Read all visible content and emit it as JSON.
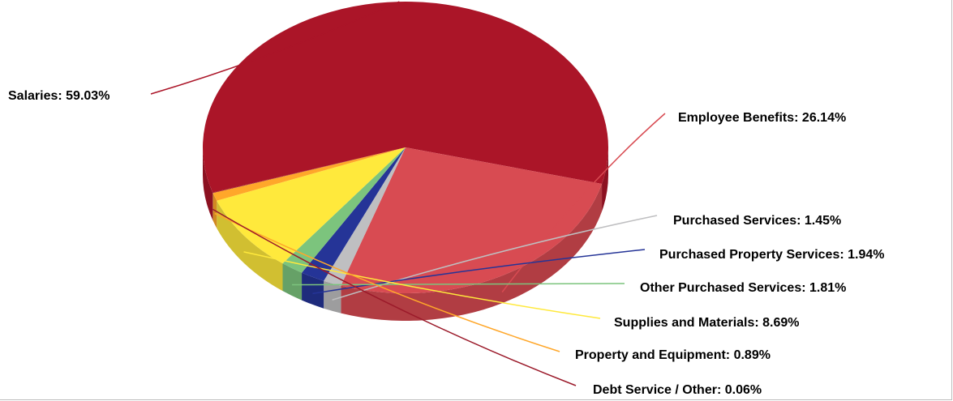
{
  "chart_data": {
    "type": "pie",
    "title": "",
    "three_d": true,
    "slices": [
      {
        "name": "Salaries",
        "value": 59.03,
        "label": "Salaries: 59.03%",
        "color": "#ab1528"
      },
      {
        "name": "Employee Benefits",
        "value": 26.14,
        "label": "Employee Benefits: 26.14%",
        "color": "#d84b52"
      },
      {
        "name": "Purchased Services",
        "value": 1.45,
        "label": "Purchased Services: 1.45%",
        "color": "#bfbfc1"
      },
      {
        "name": "Purchased Property Services",
        "value": 1.94,
        "label": "Purchased Property Services: 1.94%",
        "color": "#253497"
      },
      {
        "name": "Other Purchased Services",
        "value": 1.81,
        "label": "Other Purchased Services: 1.81%",
        "color": "#7cc47d"
      },
      {
        "name": "Supplies and Materials",
        "value": 8.69,
        "label": "Supplies and Materials: 8.69%",
        "color": "#ffe93c"
      },
      {
        "name": "Property and Equipment",
        "value": 0.89,
        "label": "Property and Equipment: 0.89%",
        "color": "#ffa72a"
      },
      {
        "name": "Debt Service / Other",
        "value": 0.06,
        "label": "Debt Service / Other: 0.06%",
        "color": "#9b1a2a"
      }
    ]
  }
}
